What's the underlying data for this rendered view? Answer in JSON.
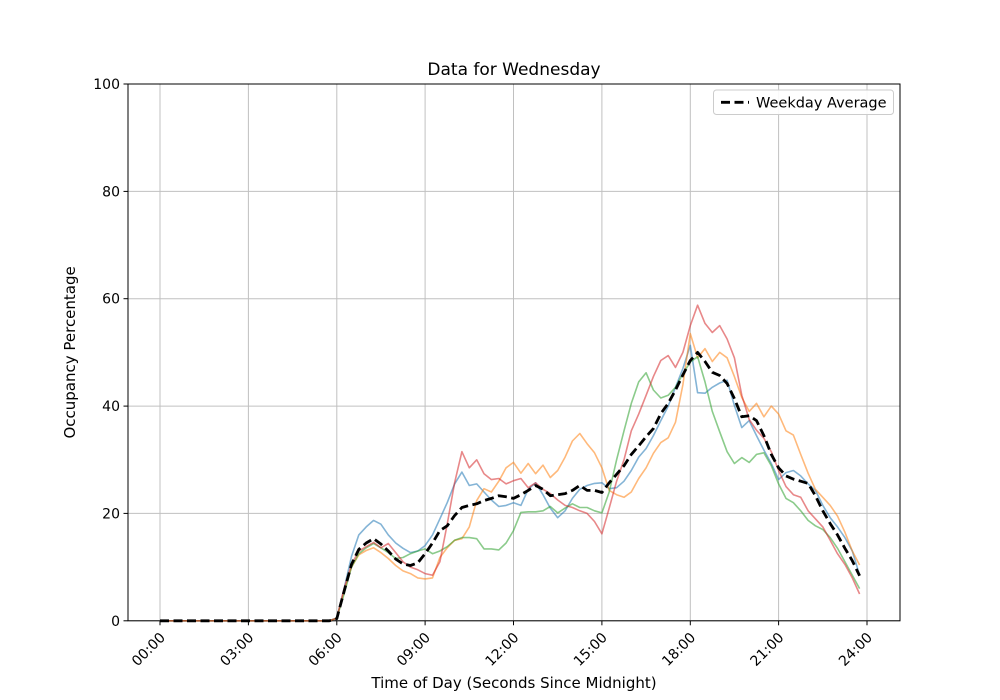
{
  "chart": {
    "title": "Data for Wednesday",
    "xlabel": "Time of Day (Seconds Since Midnight)",
    "ylabel": "Occupancy Percentage",
    "legend": {
      "label": "Weekday Average",
      "position": "upper right"
    }
  },
  "axes": {
    "x_tick_labels": [
      "00:00",
      "03:00",
      "06:00",
      "09:00",
      "12:00",
      "15:00",
      "18:00",
      "21:00",
      "24:00"
    ],
    "x_tick_hours": [
      0,
      3,
      6,
      9,
      12,
      15,
      18,
      21,
      24
    ],
    "y_tick_labels": [
      "0",
      "20",
      "40",
      "60",
      "80",
      "100"
    ],
    "y_tick_values": [
      0,
      20,
      40,
      60,
      80,
      100
    ],
    "ylim": [
      0,
      100
    ],
    "grid": true,
    "grid_color": "#c0c0c0",
    "spine_color": "#000000"
  },
  "chart_data": {
    "type": "line",
    "title": "Data for Wednesday",
    "xlabel": "Time of Day (Seconds Since Midnight)",
    "ylabel": "Occupancy Percentage",
    "ylim": [
      0,
      100
    ],
    "grid": true,
    "legend_entries": [
      "Weekday Average"
    ],
    "legend_position": "upper right",
    "x": [
      "00:00",
      "00:15",
      "00:30",
      "00:45",
      "01:00",
      "01:15",
      "01:30",
      "01:45",
      "02:00",
      "02:15",
      "02:30",
      "02:45",
      "03:00",
      "03:15",
      "03:30",
      "03:45",
      "04:00",
      "04:15",
      "04:30",
      "04:45",
      "05:00",
      "05:15",
      "05:30",
      "05:45",
      "06:00",
      "06:15",
      "06:30",
      "06:45",
      "07:00",
      "07:15",
      "07:30",
      "07:45",
      "08:00",
      "08:15",
      "08:30",
      "08:45",
      "09:00",
      "09:15",
      "09:30",
      "09:45",
      "10:00",
      "10:15",
      "10:30",
      "10:45",
      "11:00",
      "11:15",
      "11:30",
      "11:45",
      "12:00",
      "12:15",
      "12:30",
      "12:45",
      "13:00",
      "13:15",
      "13:30",
      "13:45",
      "14:00",
      "14:15",
      "14:30",
      "14:45",
      "15:00",
      "15:15",
      "15:30",
      "15:45",
      "16:00",
      "16:15",
      "16:30",
      "16:45",
      "17:00",
      "17:15",
      "17:30",
      "17:45",
      "18:00",
      "18:15",
      "18:30",
      "18:45",
      "19:00",
      "19:15",
      "19:30",
      "19:45",
      "20:00",
      "20:15",
      "20:30",
      "20:45",
      "21:00",
      "21:15",
      "21:30",
      "21:45",
      "22:00",
      "22:15",
      "22:30",
      "22:45",
      "23:00",
      "23:15",
      "23:30",
      "23:45"
    ],
    "series": [
      {
        "name": "series-1",
        "color": "#1f77b4",
        "opacity": 0.55,
        "dash": null,
        "width": 1.6,
        "values": [
          0,
          0,
          0,
          0,
          0,
          0,
          0,
          0,
          0,
          0,
          0,
          0,
          0,
          0,
          0,
          0,
          0,
          0,
          0,
          0,
          0,
          0,
          0,
          0,
          0.5,
          6,
          12,
          16,
          17.5,
          18.7,
          18,
          16,
          14.5,
          13.5,
          12.7,
          13,
          14,
          16,
          19,
          22,
          25.5,
          27.7,
          25.2,
          25.5,
          24,
          22.5,
          21.3,
          21.5,
          22,
          21.5,
          24.5,
          25.7,
          23.5,
          21,
          19.2,
          20.5,
          22.8,
          24.5,
          25.2,
          25.6,
          25.7,
          24.6,
          24.8,
          26,
          28,
          30.5,
          32.1,
          34.5,
          37.3,
          40,
          43.5,
          47,
          51.3,
          42.5,
          42.4,
          43.5,
          44.3,
          44.8,
          40.1,
          36,
          37.3,
          34.5,
          31.8,
          29.3,
          26.3,
          27.6,
          28,
          27,
          25.5,
          24.3,
          21.5,
          19.2,
          17.5,
          15.5,
          13,
          8.5
        ]
      },
      {
        "name": "series-2",
        "color": "#ff7f0e",
        "opacity": 0.55,
        "dash": null,
        "width": 1.6,
        "values": [
          0,
          0,
          0,
          0,
          0,
          0,
          0,
          0,
          0,
          0,
          0,
          0,
          0,
          0,
          0,
          0,
          0,
          0,
          0,
          0,
          0,
          0,
          0,
          0,
          0.5,
          5.5,
          10,
          12.3,
          13.1,
          13.6,
          12.7,
          11.6,
          10.3,
          9.3,
          8.8,
          8,
          7.8,
          8,
          11.8,
          13.6,
          15,
          15.3,
          17.5,
          22.4,
          24.6,
          24,
          26,
          28.5,
          29.5,
          27.5,
          29.3,
          27.4,
          29,
          26.7,
          28,
          30.5,
          33.5,
          34.9,
          33,
          31.3,
          28.5,
          24.3,
          23.5,
          23,
          24,
          26.5,
          28.5,
          31.2,
          33.2,
          34.1,
          37,
          44,
          53.5,
          49,
          50.7,
          48.3,
          50,
          49,
          45.5,
          41.6,
          39,
          40.5,
          38,
          40,
          38.5,
          35.4,
          34.6,
          31,
          27.5,
          24.5,
          23,
          21.5,
          19.5,
          16.5,
          13,
          10.4
        ]
      },
      {
        "name": "series-3",
        "color": "#2ca02c",
        "opacity": 0.55,
        "dash": null,
        "width": 1.6,
        "values": [
          0,
          0,
          0,
          0,
          0,
          0,
          0,
          0,
          0,
          0,
          0,
          0,
          0,
          0,
          0,
          0,
          0,
          0,
          0,
          0,
          0,
          0,
          0,
          0,
          0.5,
          5,
          10,
          12.5,
          13.6,
          14.4,
          13.6,
          12.7,
          11.6,
          11.8,
          12.5,
          13,
          13.4,
          12.5,
          13,
          13.8,
          15,
          15.5,
          15.5,
          15.3,
          13.4,
          13.4,
          13.2,
          14.5,
          16.8,
          20.2,
          20.3,
          20.3,
          20.5,
          21.3,
          20.1,
          21,
          21.8,
          21.1,
          21.1,
          20.5,
          20.1,
          24,
          30,
          35.4,
          40.5,
          44.5,
          46.2,
          43,
          41.5,
          42,
          43.5,
          46,
          48.2,
          49.2,
          44.5,
          39,
          35.2,
          31.5,
          29.3,
          30.4,
          29.5,
          31,
          31.3,
          28.9,
          25.5,
          22.8,
          22,
          20.5,
          18.7,
          17.7,
          17,
          15.5,
          13.5,
          11,
          8.5,
          6
        ]
      },
      {
        "name": "series-4",
        "color": "#d62728",
        "opacity": 0.55,
        "dash": null,
        "width": 1.6,
        "values": [
          0,
          0,
          0,
          0,
          0,
          0,
          0,
          0,
          0,
          0,
          0,
          0,
          0,
          0,
          0,
          0,
          0,
          0,
          0,
          0,
          0,
          0,
          0,
          0,
          0.5,
          6,
          10.5,
          13,
          13.8,
          14.6,
          13.6,
          14.4,
          12.7,
          11,
          10,
          9.5,
          8.8,
          8.5,
          11,
          18,
          25.7,
          31.5,
          28.5,
          30,
          27.4,
          26.3,
          26.5,
          25.5,
          26.1,
          26.5,
          24.8,
          25.7,
          24.5,
          23.7,
          22.5,
          21.5,
          21.1,
          20.5,
          20,
          18.5,
          16.2,
          21,
          26,
          30,
          35.4,
          38.5,
          42,
          45.5,
          48.5,
          49.4,
          47.2,
          50,
          55,
          58.8,
          55.4,
          53.7,
          55,
          52.5,
          49,
          42,
          37.5,
          35.5,
          34,
          31.5,
          28,
          25,
          23.5,
          23,
          20.5,
          19,
          17.5,
          15,
          12.5,
          10.5,
          8,
          5
        ]
      },
      {
        "name": "Weekday Average",
        "color": "#000000",
        "opacity": 1,
        "dash": "9 4.5",
        "width": 2.8,
        "values": [
          0,
          0,
          0,
          0,
          0,
          0,
          0,
          0,
          0,
          0,
          0,
          0,
          0,
          0,
          0,
          0,
          0,
          0,
          0,
          0,
          0,
          0,
          0,
          0,
          0.4,
          5.5,
          10.5,
          13.3,
          14.5,
          15.3,
          14.3,
          13,
          11.5,
          10.6,
          10.3,
          10.8,
          12.5,
          14.5,
          16.8,
          17.7,
          19.6,
          21.1,
          21.5,
          21.8,
          22.4,
          22.8,
          23.3,
          23.1,
          22.8,
          23.5,
          24.3,
          25.2,
          24.5,
          23.3,
          23.5,
          23.7,
          24.3,
          25.2,
          24.3,
          24.3,
          23.9,
          25.7,
          27.3,
          28.9,
          31,
          32.6,
          34.3,
          35.8,
          38.6,
          40.5,
          43,
          45.8,
          48.5,
          50,
          48.3,
          46.3,
          45.7,
          44.2,
          41.4,
          38,
          38.2,
          37.3,
          34.5,
          31,
          28.5,
          27,
          26.4,
          26,
          25.6,
          23.3,
          20.5,
          18.1,
          16,
          13.5,
          11.2,
          8.4
        ]
      }
    ]
  }
}
